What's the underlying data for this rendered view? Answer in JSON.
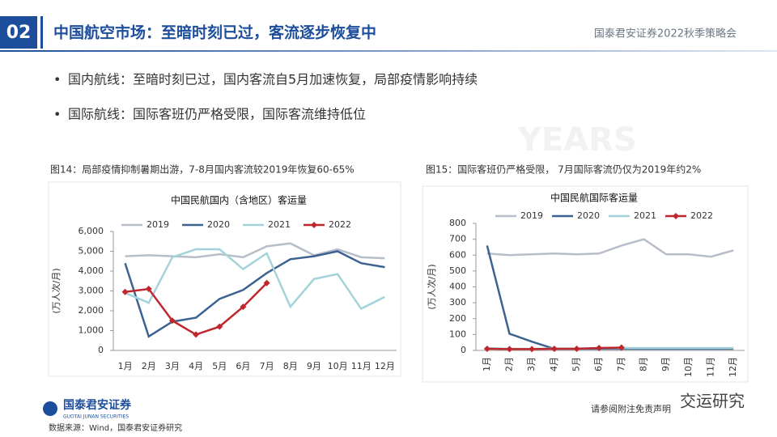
{
  "header": {
    "number": "02",
    "title": "中国航空市场：至暗时刻已过，客流逐步恢复中",
    "event": "国泰君安证券2022秋季策略会"
  },
  "bullets": [
    "国内航线：至暗时刻已过，国内客流自5月加速恢复，局部疫情影响持续",
    "国际航线：国际客班仍严格受限，国际客流维持低位"
  ],
  "footer": {
    "logo": "国泰君安证券",
    "logo_en": "GUOTAI JUNAN SECURITIES",
    "source": "数据来源：Wind，国泰君安证券研究",
    "disclaimer": "请参阅附注免责声明",
    "watermark": "交运研究"
  },
  "chart_data": [
    {
      "type": "line",
      "caption": "图14：局部疫情抑制暑期出游，7-8月国内客流较2019年恢复60-65%",
      "title": "中国民航国内（含地区）客运量",
      "ylabel": "(万人次/月)",
      "categories": [
        "1月",
        "2月",
        "3月",
        "4月",
        "5月",
        "6月",
        "7月",
        "8月",
        "9月",
        "10月",
        "11月",
        "12月"
      ],
      "ylim": [
        0,
        6000
      ],
      "yticks": [
        0,
        {
          "value": 1000,
          "label": "1,000"
        },
        {
          "value": 2000,
          "label": "2,000"
        },
        {
          "value": 3000,
          "label": "3,000"
        },
        {
          "value": 4000,
          "label": "4,000"
        },
        {
          "value": 5000,
          "label": "5,000"
        },
        {
          "value": 6000,
          "label": "6,000"
        }
      ],
      "legend": "top",
      "grid": false,
      "series": [
        {
          "name": "2019",
          "color": "#b7bec9",
          "values": [
            4750,
            4800,
            4750,
            4700,
            4850,
            4700,
            5250,
            5400,
            4800,
            5100,
            4700,
            4650
          ]
        },
        {
          "name": "2020",
          "color": "#3b6290",
          "values": [
            4400,
            700,
            1450,
            1650,
            2600,
            3050,
            3900,
            4600,
            4750,
            5000,
            4400,
            4200
          ]
        },
        {
          "name": "2021",
          "color": "#a3d3d9",
          "values": [
            2900,
            2400,
            4700,
            5100,
            5100,
            4100,
            4900,
            2200,
            3600,
            3850,
            2100,
            2700
          ]
        },
        {
          "name": "2022",
          "color": "#c0272d",
          "marker": "diamond",
          "values": [
            2950,
            3100,
            1500,
            800,
            1200,
            2200,
            3400,
            null,
            null,
            null,
            null,
            null
          ]
        }
      ]
    },
    {
      "type": "line",
      "caption": "图15：国际客班仍严格受限， 7月国际客流仍仅为2019年约2%",
      "title": "中国民航国际客运量",
      "ylabel": "(万人次/月)",
      "categories": [
        "1月",
        "2月",
        "3月",
        "4月",
        "5月",
        "6月",
        "7月",
        "8月",
        "9月",
        "10月",
        "11月",
        "12月"
      ],
      "ylim": [
        0,
        800
      ],
      "yticks": [
        0,
        100,
        200,
        300,
        400,
        500,
        600,
        700,
        800
      ],
      "legend": "top",
      "grid": false,
      "series": [
        {
          "name": "2019",
          "color": "#b7bec9",
          "values": [
            610,
            600,
            605,
            610,
            605,
            610,
            660,
            700,
            605,
            605,
            590,
            630
          ]
        },
        {
          "name": "2020",
          "color": "#3b6290",
          "values": [
            660,
            105,
            55,
            10,
            10,
            10,
            10,
            10,
            10,
            10,
            10,
            10
          ]
        },
        {
          "name": "2021",
          "color": "#a3d3d9",
          "values": [
            15,
            10,
            10,
            12,
            12,
            15,
            15,
            15,
            15,
            15,
            15,
            15
          ]
        },
        {
          "name": "2022",
          "color": "#c0272d",
          "marker": "diamond",
          "values": [
            10,
            8,
            8,
            10,
            10,
            15,
            18,
            null,
            null,
            null,
            null,
            null
          ]
        }
      ]
    }
  ]
}
